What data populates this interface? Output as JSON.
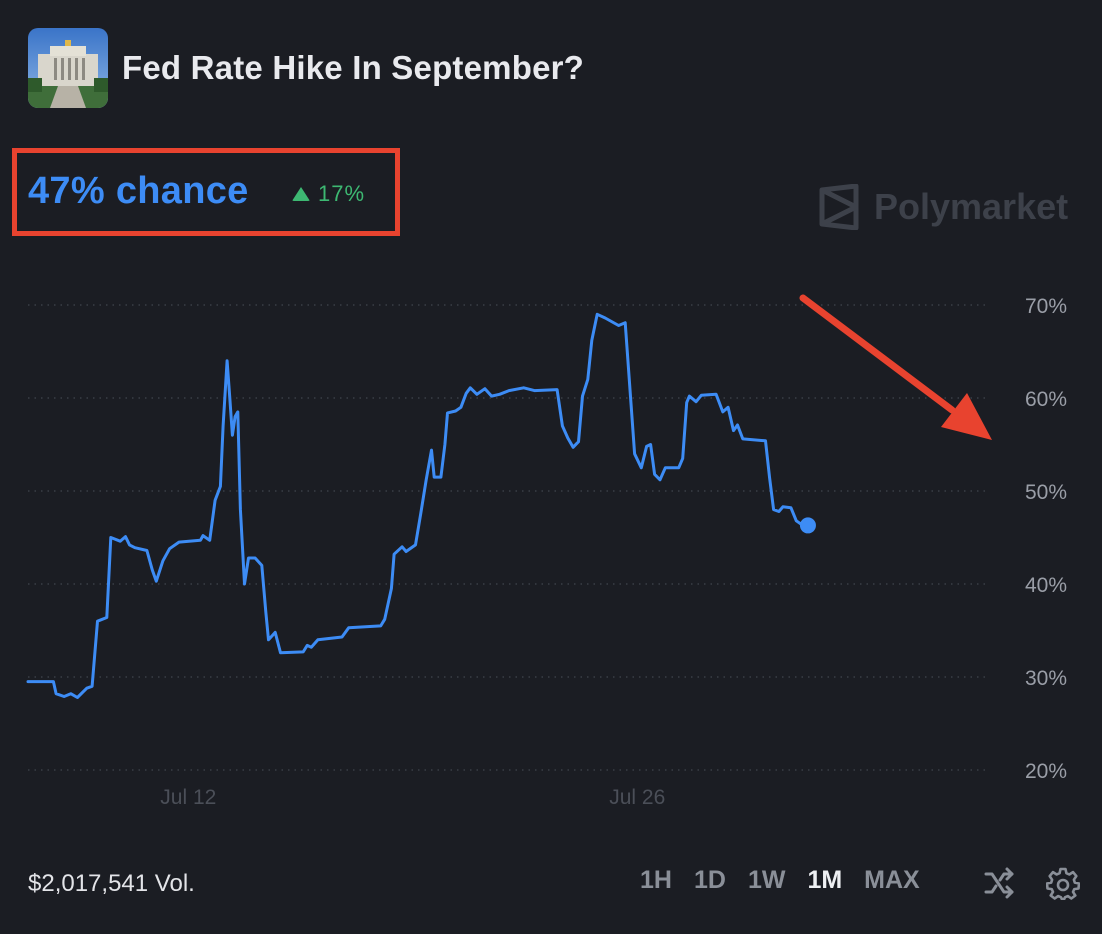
{
  "market": {
    "title": "Fed Rate Hike In September?",
    "chance_label": "47% chance",
    "change_label": "17%",
    "change_direction": "up",
    "volume_label": "$2,017,541 Vol.",
    "brand": "Polymarket"
  },
  "controls": {
    "periods": [
      "1H",
      "1D",
      "1W",
      "1M",
      "MAX"
    ],
    "active_period": "1M"
  },
  "colors": {
    "background": "#1b1d23",
    "line": "#3d8cf5",
    "up": "#3db872",
    "highlight": "#e8432f",
    "grid": "#3a3e46",
    "muted_text": "#8a8f98"
  },
  "chart_data": {
    "type": "line",
    "title": "",
    "xlabel": "",
    "ylabel": "",
    "x_ticks": [
      "Jul 12",
      "Jul 26"
    ],
    "y_ticks": [
      "70%",
      "60%",
      "50%",
      "40%",
      "30%",
      "20%"
    ],
    "ylim": [
      20,
      70
    ],
    "grid": "horizontal dotted",
    "x_start": "Jul 7",
    "x_end": "Aug 6",
    "series": [
      {
        "name": "",
        "values": [
          [
            "Jul 7 00:00",
            29.5
          ],
          [
            "Jul 7 19:00",
            29.5
          ],
          [
            "Jul 7 21:00",
            28.2
          ],
          [
            "Jul 8 03:00",
            27.9
          ],
          [
            "Jul 8 08:00",
            28.2
          ],
          [
            "Jul 8 13:00",
            27.8
          ],
          [
            "Jul 8 20:00",
            28.8
          ],
          [
            "Jul 9 00:00",
            29.0
          ],
          [
            "Jul 9 04:00",
            36.0
          ],
          [
            "Jul 9 11:00",
            36.4
          ],
          [
            "Jul 9 14:00",
            45.0
          ],
          [
            "Jul 9 21:00",
            44.6
          ],
          [
            "Jul 10 01:00",
            45.1
          ],
          [
            "Jul 10 04:00",
            44.2
          ],
          [
            "Jul 10 08:00",
            43.9
          ],
          [
            "Jul 10 17:00",
            43.6
          ],
          [
            "Jul 10 21:00",
            41.5
          ],
          [
            "Jul 11 00:00",
            40.3
          ],
          [
            "Jul 11 05:00",
            42.5
          ],
          [
            "Jul 11 10:00",
            43.8
          ],
          [
            "Jul 11 17:00",
            44.5
          ],
          [
            "Jul 12 09:00",
            44.7
          ],
          [
            "Jul 12 11:00",
            45.2
          ],
          [
            "Jul 12 16:00",
            44.7
          ],
          [
            "Jul 12 20:00",
            49.0
          ],
          [
            "Jul 13 00:00",
            50.5
          ],
          [
            "Jul 13 02:00",
            57.0
          ],
          [
            "Jul 13 05:00",
            64.0
          ],
          [
            "Jul 13 07:00",
            60.0
          ],
          [
            "Jul 13 09:00",
            56.0
          ],
          [
            "Jul 13 11:00",
            58.0
          ],
          [
            "Jul 13 13:00",
            58.5
          ],
          [
            "Jul 13 15:00",
            48.0
          ],
          [
            "Jul 13 18:00",
            40.0
          ],
          [
            "Jul 13 21:00",
            42.8
          ],
          [
            "Jul 14 02:00",
            42.8
          ],
          [
            "Jul 14 07:00",
            42.0
          ],
          [
            "Jul 14 10:00",
            37.0
          ],
          [
            "Jul 14 12:00",
            34.0
          ],
          [
            "Jul 14 17:00",
            34.8
          ],
          [
            "Jul 14 21:00",
            32.6
          ],
          [
            "Jul 15 14:00",
            32.7
          ],
          [
            "Jul 15 17:00",
            33.4
          ],
          [
            "Jul 15 20:00",
            33.2
          ],
          [
            "Jul 16 01:00",
            34.0
          ],
          [
            "Jul 16 19:00",
            34.3
          ],
          [
            "Jul 17 00:00",
            35.3
          ],
          [
            "Jul 18 00:00",
            35.5
          ],
          [
            "Jul 18 03:00",
            36.2
          ],
          [
            "Jul 18 08:00",
            39.5
          ],
          [
            "Jul 18 10:00",
            43.2
          ],
          [
            "Jul 18 16:00",
            44.0
          ],
          [
            "Jul 18 19:00",
            43.5
          ],
          [
            "Jul 19 02:00",
            44.2
          ],
          [
            "Jul 19 06:00",
            47.6
          ],
          [
            "Jul 19 10:00",
            51.2
          ],
          [
            "Jul 19 14:00",
            54.4
          ],
          [
            "Jul 19 16:00",
            51.5
          ],
          [
            "Jul 19 21:00",
            51.5
          ],
          [
            "Jul 20 00:00",
            55.0
          ],
          [
            "Jul 20 02:00",
            58.4
          ],
          [
            "Jul 20 08:00",
            58.6
          ],
          [
            "Jul 20 12:00",
            59.0
          ],
          [
            "Jul 20 16:00",
            60.5
          ],
          [
            "Jul 20 19:00",
            61.1
          ],
          [
            "Jul 21 00:00",
            60.4
          ],
          [
            "Jul 21 06:00",
            61.0
          ],
          [
            "Jul 21 11:00",
            60.2
          ],
          [
            "Jul 21 17:00",
            60.4
          ],
          [
            "Jul 22 00:00",
            60.8
          ],
          [
            "Jul 22 11:00",
            61.1
          ],
          [
            "Jul 22 19:00",
            60.8
          ],
          [
            "Jul 23 12:00",
            60.9
          ],
          [
            "Jul 23 16:00",
            57.0
          ],
          [
            "Jul 23 20:00",
            55.7
          ],
          [
            "Jul 24 00:00",
            54.7
          ],
          [
            "Jul 24 04:00",
            55.3
          ],
          [
            "Jul 24 07:00",
            60.2
          ],
          [
            "Jul 24 11:00",
            62.0
          ],
          [
            "Jul 24 14:00",
            66.2
          ],
          [
            "Jul 24 18:00",
            69.0
          ],
          [
            "Jul 25 00:00",
            68.6
          ],
          [
            "Jul 25 10:00",
            67.8
          ],
          [
            "Jul 25 15:00",
            68.1
          ],
          [
            "Jul 25 19:00",
            60.0
          ],
          [
            "Jul 25 22:00",
            54.0
          ],
          [
            "Jul 26 03:00",
            52.5
          ],
          [
            "Jul 26 07:00",
            54.8
          ],
          [
            "Jul 26 10:00",
            55.0
          ],
          [
            "Jul 26 13:00",
            51.8
          ],
          [
            "Jul 26 17:00",
            51.2
          ],
          [
            "Jul 26 21:00",
            52.5
          ],
          [
            "Jul 27 07:00",
            52.5
          ],
          [
            "Jul 27 10:00",
            53.5
          ],
          [
            "Jul 27 13:00",
            59.5
          ],
          [
            "Jul 27 15:00",
            60.2
          ],
          [
            "Jul 27 20:00",
            59.6
          ],
          [
            "Jul 28 00:00",
            60.3
          ],
          [
            "Jul 28 11:00",
            60.4
          ],
          [
            "Jul 28 16:00",
            58.5
          ],
          [
            "Jul 28 20:00",
            59.0
          ],
          [
            "Jul 29 00:00",
            56.5
          ],
          [
            "Jul 29 03:00",
            57.1
          ],
          [
            "Jul 29 07:00",
            55.6
          ],
          [
            "Jul 30 00:00",
            55.4
          ],
          [
            "Jul 30 03:00",
            51.5
          ],
          [
            "Jul 30 06:00",
            48.0
          ],
          [
            "Jul 30 10:00",
            47.8
          ],
          [
            "Jul 30 13:00",
            48.3
          ],
          [
            "Jul 30 19:00",
            48.2
          ],
          [
            "Jul 30 23:00",
            46.8
          ],
          [
            "Jul 31 04:00",
            46.3
          ]
        ]
      }
    ],
    "annotations": [
      "current value marker",
      "red downward-trend arrow",
      "red highlight box around current odds"
    ]
  }
}
